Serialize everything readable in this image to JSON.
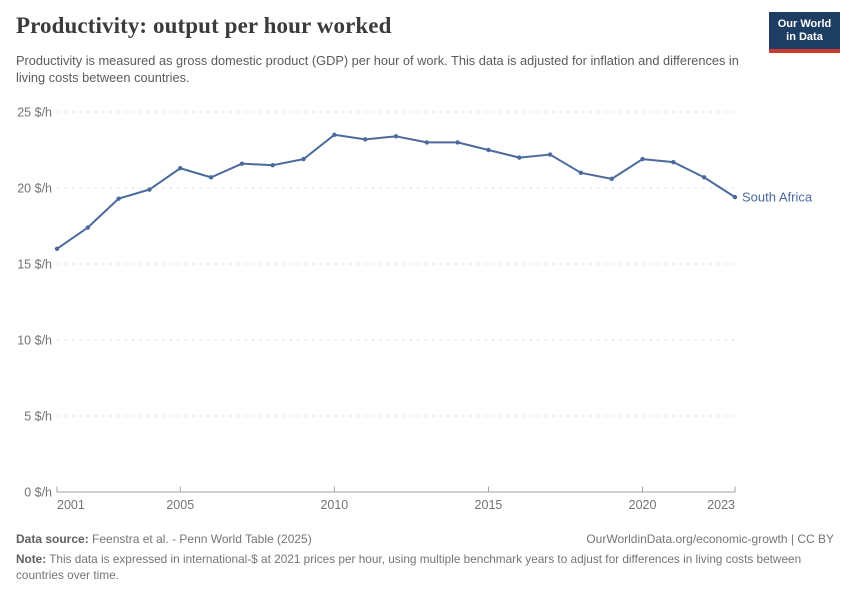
{
  "header": {
    "title": "Productivity: output per hour worked",
    "subtitle": "Productivity is measured as gross domestic product (GDP) per hour of work. This data is adjusted for inflation and differences in living costs between countries.",
    "logo": {
      "line1": "Our World",
      "line2": "in Data",
      "bg_color": "#1d3d63",
      "stripe_color": "#cb3731"
    }
  },
  "chart_data": {
    "type": "line",
    "title": "Productivity: output per hour worked",
    "xlabel": "",
    "ylabel": "",
    "x": [
      2001,
      2002,
      2003,
      2004,
      2005,
      2006,
      2007,
      2008,
      2009,
      2010,
      2011,
      2012,
      2013,
      2014,
      2015,
      2016,
      2017,
      2018,
      2019,
      2020,
      2021,
      2022,
      2023
    ],
    "series": [
      {
        "name": "South Africa",
        "color": "#4C6A9C",
        "values": [
          16.0,
          17.4,
          19.3,
          19.9,
          21.3,
          20.7,
          21.6,
          21.5,
          21.9,
          23.5,
          23.2,
          23.4,
          23.0,
          23.0,
          22.5,
          22.0,
          22.2,
          21.0,
          20.6,
          21.9,
          21.7,
          20.7,
          19.4
        ]
      }
    ],
    "xlim": [
      2001,
      2023
    ],
    "ylim": [
      0,
      25
    ],
    "xticks": [
      2001,
      2005,
      2010,
      2015,
      2020,
      2023
    ],
    "yticks": [
      0,
      5,
      10,
      15,
      20,
      25
    ],
    "ytick_suffix": " $/h",
    "grid": true,
    "legend": "end-of-line-label",
    "unit": "international-$ per hour"
  },
  "footer": {
    "datasource_label": "Data source:",
    "datasource_text": " Feenstra et al. - Penn World Table (2025)",
    "link": "OurWorldinData.org/economic-growth | CC BY",
    "note_label": "Note:",
    "note_text": " This data is expressed in international-$ at 2021 prices per hour, using multiple benchmark years to adjust for differences in living costs between countries over time."
  }
}
